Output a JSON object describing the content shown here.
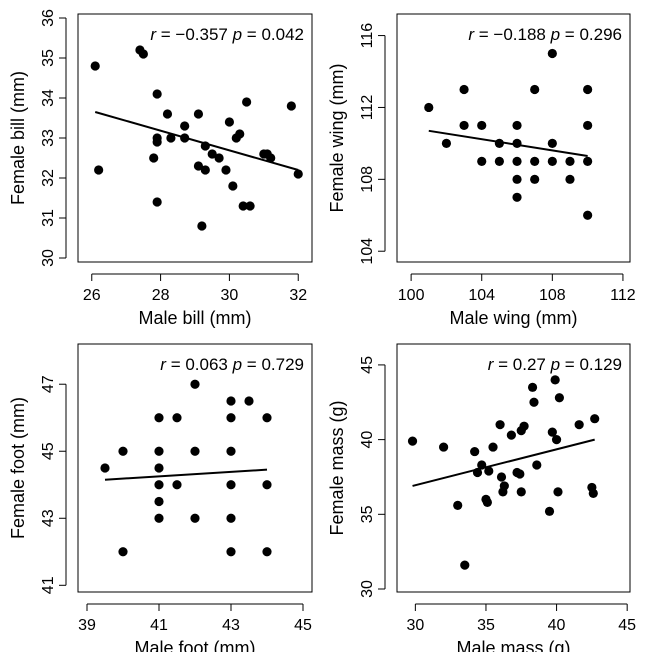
{
  "chart_data": [
    {
      "type": "scatter",
      "xlabel": "Male bill (mm)",
      "ylabel": "Female bill (mm)",
      "xlim": [
        25.6,
        32.4
      ],
      "ylim": [
        29.9,
        36.1
      ],
      "xticks": [
        "26",
        "28",
        "30",
        "32"
      ],
      "yticks": [
        "30",
        "31",
        "32",
        "33",
        "34",
        "35",
        "36"
      ],
      "stat": {
        "r_label": "r",
        "r_value": " = −0.357 ",
        "p_label": "p",
        "p_value": " = 0.042"
      },
      "fit": {
        "x": [
          26.1,
          32.0
        ],
        "y": [
          33.65,
          32.2
        ]
      },
      "points": [
        [
          26.1,
          34.8
        ],
        [
          26.2,
          32.2
        ],
        [
          27.4,
          35.2
        ],
        [
          27.5,
          35.1
        ],
        [
          27.8,
          32.5
        ],
        [
          27.9,
          33.0
        ],
        [
          27.9,
          34.1
        ],
        [
          27.9,
          31.4
        ],
        [
          27.9,
          32.9
        ],
        [
          28.2,
          33.6
        ],
        [
          28.3,
          33.0
        ],
        [
          28.7,
          33.0
        ],
        [
          28.7,
          33.3
        ],
        [
          29.1,
          33.6
        ],
        [
          29.1,
          32.3
        ],
        [
          29.2,
          30.8
        ],
        [
          29.3,
          32.8
        ],
        [
          29.3,
          32.2
        ],
        [
          29.5,
          32.6
        ],
        [
          29.7,
          32.5
        ],
        [
          29.9,
          32.2
        ],
        [
          30.0,
          33.4
        ],
        [
          30.1,
          31.8
        ],
        [
          30.2,
          33.0
        ],
        [
          30.3,
          33.1
        ],
        [
          30.4,
          31.3
        ],
        [
          30.5,
          33.9
        ],
        [
          30.6,
          31.3
        ],
        [
          31.0,
          32.6
        ],
        [
          31.1,
          32.6
        ],
        [
          31.2,
          32.5
        ],
        [
          31.8,
          33.8
        ],
        [
          32.0,
          32.1
        ]
      ]
    },
    {
      "type": "scatter",
      "xlabel": "Male wing (mm)",
      "ylabel": "Female wing (mm)",
      "xlim": [
        99.2,
        112.4
      ],
      "ylim": [
        103.4,
        117.2
      ],
      "xticks": [
        "100",
        "104",
        "108",
        "112"
      ],
      "yticks": [
        "104",
        "108",
        "112",
        "116"
      ],
      "stat": {
        "r_label": "r",
        "r_value": " = −0.188 ",
        "p_label": "p",
        "p_value": " = 0.296"
      },
      "fit": {
        "x": [
          101.0,
          110.0
        ],
        "y": [
          110.7,
          109.3
        ]
      },
      "points": [
        [
          101,
          112
        ],
        [
          102,
          110
        ],
        [
          103,
          113
        ],
        [
          103,
          111
        ],
        [
          104,
          111
        ],
        [
          104,
          109
        ],
        [
          105,
          110
        ],
        [
          105,
          109
        ],
        [
          106,
          111
        ],
        [
          106,
          109
        ],
        [
          106,
          108
        ],
        [
          106,
          107
        ],
        [
          106,
          110
        ],
        [
          107,
          113
        ],
        [
          107,
          109
        ],
        [
          107,
          108
        ],
        [
          108,
          115
        ],
        [
          108,
          110
        ],
        [
          108,
          109
        ],
        [
          109,
          109
        ],
        [
          109,
          108
        ],
        [
          110,
          113
        ],
        [
          110,
          111
        ],
        [
          110,
          109
        ],
        [
          110,
          106
        ]
      ]
    },
    {
      "type": "scatter",
      "xlabel": "Male foot (mm)",
      "ylabel": "Female foot (mm)",
      "xlim": [
        38.75,
        45.25
      ],
      "ylim": [
        40.8,
        48.2
      ],
      "xticks": [
        "39",
        "41",
        "43",
        "45"
      ],
      "yticks": [
        "41",
        "43",
        "45",
        "47"
      ],
      "stat": {
        "r_label": "r",
        "r_value": " = 0.063 ",
        "p_label": "p",
        "p_value": " = 0.729"
      },
      "fit": {
        "x": [
          39.5,
          44.0
        ],
        "y": [
          44.15,
          44.45
        ]
      },
      "points": [
        [
          39.5,
          44.5
        ],
        [
          40.0,
          45.0
        ],
        [
          40.0,
          42.0
        ],
        [
          41.0,
          46.0
        ],
        [
          41.0,
          45.0
        ],
        [
          41.0,
          44.5
        ],
        [
          41.0,
          44.0
        ],
        [
          41.0,
          43.5
        ],
        [
          41.0,
          43.0
        ],
        [
          41.5,
          46.0
        ],
        [
          41.5,
          44.0
        ],
        [
          42.0,
          47.0
        ],
        [
          42.0,
          45.0
        ],
        [
          42.0,
          43.0
        ],
        [
          43.0,
          46.5
        ],
        [
          43.0,
          46.0
        ],
        [
          43.0,
          45.0
        ],
        [
          43.0,
          44.0
        ],
        [
          43.0,
          43.0
        ],
        [
          43.0,
          42.0
        ],
        [
          43.5,
          46.5
        ],
        [
          44.0,
          46.0
        ],
        [
          44.0,
          44.0
        ],
        [
          44.0,
          42.0
        ]
      ]
    },
    {
      "type": "scatter",
      "xlabel": "Male mass (g)",
      "ylabel": "Female mass (g)",
      "xlim": [
        28.7,
        45.2
      ],
      "ylim": [
        29.8,
        46.4
      ],
      "xticks": [
        "30",
        "35",
        "40",
        "45"
      ],
      "yticks": [
        "30",
        "35",
        "40",
        "45"
      ],
      "stat": {
        "r_label": "r",
        "r_value": " = 0.27 ",
        "p_label": "p",
        "p_value": " = 0.129"
      },
      "fit": {
        "x": [
          29.8,
          42.7
        ],
        "y": [
          36.9,
          40.0
        ]
      },
      "points": [
        [
          29.8,
          39.9
        ],
        [
          32.0,
          39.5
        ],
        [
          33.0,
          35.6
        ],
        [
          33.5,
          31.6
        ],
        [
          34.2,
          39.2
        ],
        [
          34.4,
          37.8
        ],
        [
          34.7,
          38.3
        ],
        [
          35.0,
          36.0
        ],
        [
          35.1,
          35.8
        ],
        [
          35.2,
          37.9
        ],
        [
          35.5,
          39.5
        ],
        [
          36.0,
          41.0
        ],
        [
          36.1,
          37.5
        ],
        [
          36.2,
          36.5
        ],
        [
          36.3,
          36.9
        ],
        [
          36.8,
          40.3
        ],
        [
          37.2,
          37.8
        ],
        [
          37.4,
          37.7
        ],
        [
          37.5,
          36.5
        ],
        [
          37.5,
          40.6
        ],
        [
          37.7,
          40.9
        ],
        [
          38.3,
          43.5
        ],
        [
          38.4,
          42.5
        ],
        [
          38.6,
          38.3
        ],
        [
          39.5,
          35.2
        ],
        [
          39.7,
          40.5
        ],
        [
          39.9,
          44.0
        ],
        [
          40.0,
          40.0
        ],
        [
          40.1,
          36.5
        ],
        [
          40.2,
          42.8
        ],
        [
          41.6,
          41.0
        ],
        [
          42.5,
          36.8
        ],
        [
          42.6,
          36.4
        ],
        [
          42.7,
          41.4
        ]
      ]
    }
  ]
}
